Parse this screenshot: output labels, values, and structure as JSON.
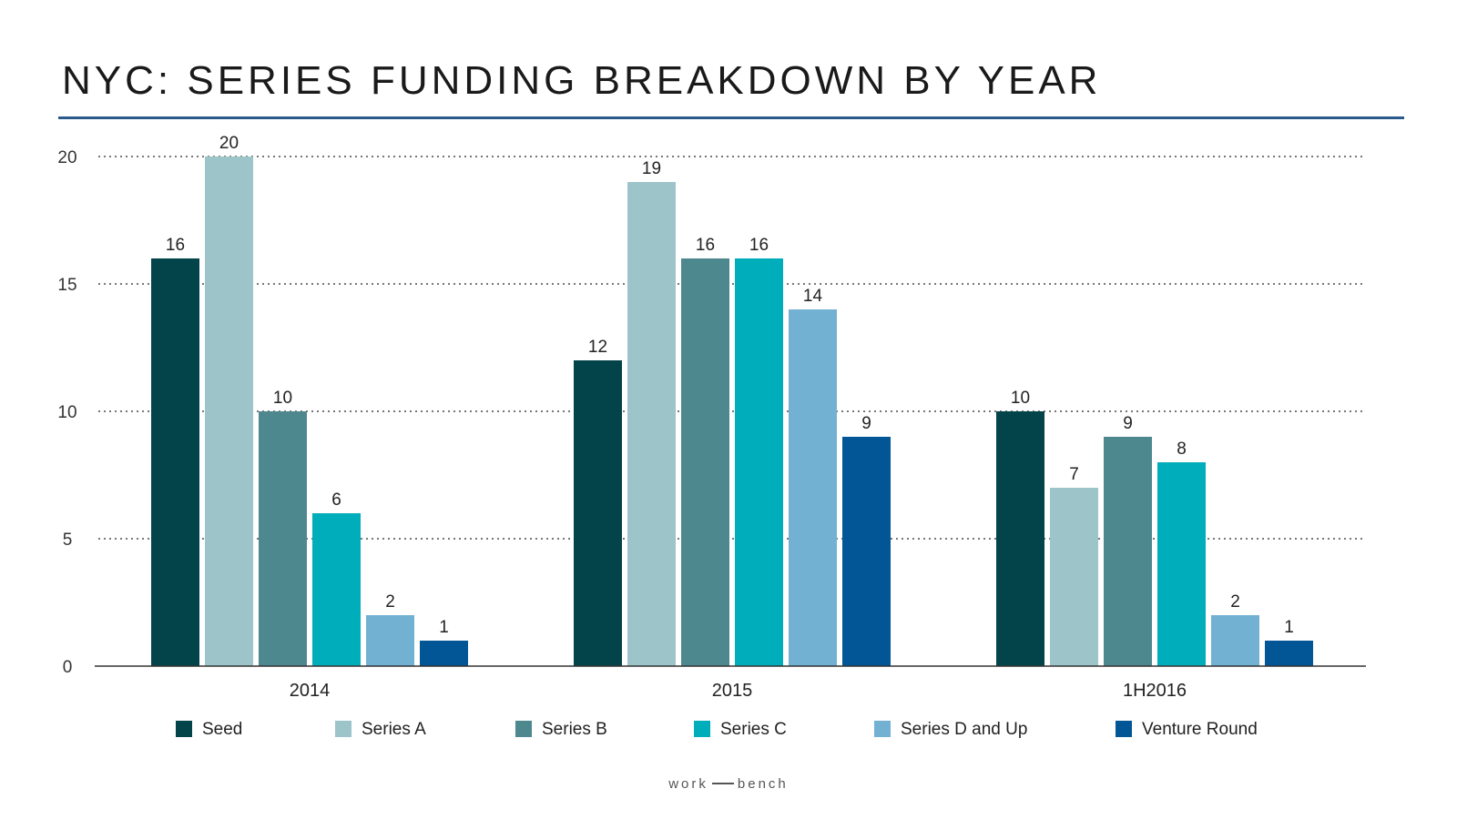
{
  "chart_data": {
    "type": "bar",
    "title": "NYC: SERIES FUNDING BREAKDOWN BY YEAR",
    "categories": [
      "2014",
      "2015",
      "1H2016"
    ],
    "series": [
      {
        "name": "Seed",
        "color": "#03444a",
        "values": [
          16,
          12,
          10
        ]
      },
      {
        "name": "Series A",
        "color": "#9dc4c9",
        "values": [
          20,
          19,
          7
        ]
      },
      {
        "name": "Series B",
        "color": "#4e888f",
        "values": [
          10,
          16,
          9
        ]
      },
      {
        "name": "Series C",
        "color": "#00adbb",
        "values": [
          6,
          16,
          8
        ]
      },
      {
        "name": "Series D and Up",
        "color": "#73b1d2",
        "values": [
          2,
          14,
          2
        ]
      },
      {
        "name": "Venture Round",
        "color": "#035696",
        "values": [
          1,
          9,
          1
        ]
      }
    ],
    "yticks": [
      0,
      5,
      10,
      15,
      20
    ],
    "ylim": [
      0,
      20
    ],
    "xlabel": "",
    "ylabel": "",
    "grid": "dotted horizontal",
    "legend": "bottom"
  },
  "footer": {
    "logo_left": "work",
    "logo_right": "bench"
  },
  "colors": {
    "title_rule": "#2a5a8c",
    "axis": "#333333",
    "grid": "#777777"
  }
}
